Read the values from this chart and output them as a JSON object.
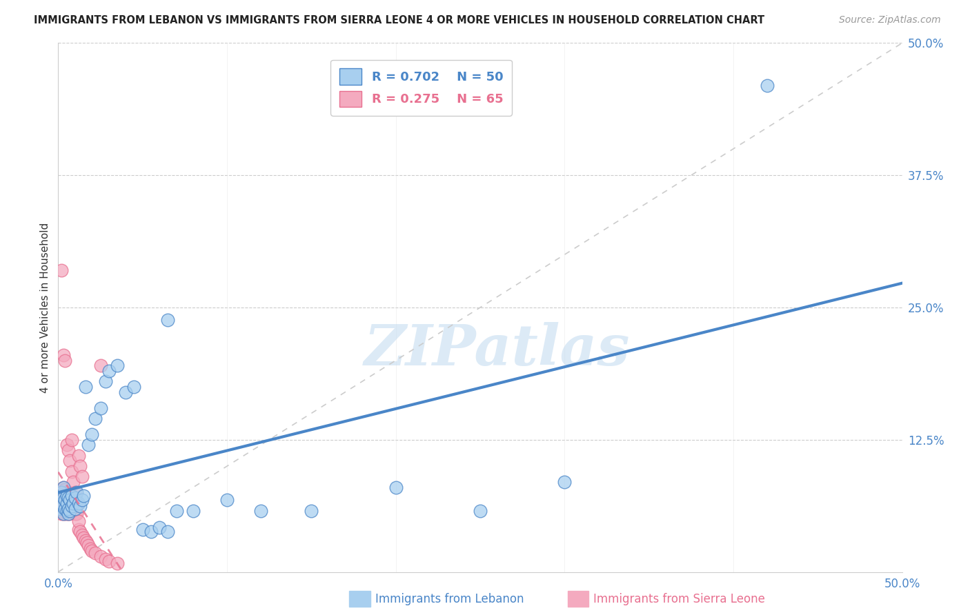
{
  "title": "IMMIGRANTS FROM LEBANON VS IMMIGRANTS FROM SIERRA LEONE 4 OR MORE VEHICLES IN HOUSEHOLD CORRELATION CHART",
  "source": "Source: ZipAtlas.com",
  "ylabel": "4 or more Vehicles in Household",
  "xlim": [
    0.0,
    0.5
  ],
  "ylim": [
    0.0,
    0.5
  ],
  "xtick_positions": [
    0.0,
    0.1,
    0.2,
    0.3,
    0.4,
    0.5
  ],
  "ytick_positions": [
    0.125,
    0.25,
    0.375,
    0.5
  ],
  "lebanon_R": 0.702,
  "lebanon_N": 50,
  "sierraleone_R": 0.275,
  "sierraleone_N": 65,
  "lebanon_color": "#A8CFEF",
  "sierraleone_color": "#F4AABF",
  "lebanon_line_color": "#4A86C8",
  "sierraleone_line_color": "#E87090",
  "diag_line_color": "#CCCCCC",
  "watermark_text": "ZIPatlas",
  "lebanon_x": [
    0.001,
    0.002,
    0.002,
    0.003,
    0.003,
    0.003,
    0.004,
    0.004,
    0.005,
    0.005,
    0.005,
    0.006,
    0.006,
    0.006,
    0.007,
    0.007,
    0.008,
    0.008,
    0.009,
    0.01,
    0.01,
    0.011,
    0.012,
    0.013,
    0.014,
    0.015,
    0.016,
    0.018,
    0.02,
    0.022,
    0.025,
    0.028,
    0.03,
    0.035,
    0.04,
    0.045,
    0.05,
    0.055,
    0.06,
    0.065,
    0.07,
    0.08,
    0.1,
    0.12,
    0.15,
    0.2,
    0.25,
    0.3,
    0.42,
    0.065
  ],
  "lebanon_y": [
    0.06,
    0.065,
    0.075,
    0.055,
    0.07,
    0.08,
    0.06,
    0.068,
    0.058,
    0.065,
    0.072,
    0.055,
    0.06,
    0.07,
    0.058,
    0.068,
    0.062,
    0.072,
    0.065,
    0.06,
    0.07,
    0.075,
    0.065,
    0.062,
    0.068,
    0.072,
    0.175,
    0.12,
    0.13,
    0.145,
    0.155,
    0.18,
    0.19,
    0.195,
    0.17,
    0.175,
    0.04,
    0.038,
    0.042,
    0.038,
    0.058,
    0.058,
    0.068,
    0.058,
    0.058,
    0.08,
    0.058,
    0.085,
    0.46,
    0.238
  ],
  "sierraleone_x": [
    0.001,
    0.001,
    0.001,
    0.002,
    0.002,
    0.002,
    0.002,
    0.003,
    0.003,
    0.003,
    0.003,
    0.004,
    0.004,
    0.004,
    0.004,
    0.005,
    0.005,
    0.005,
    0.005,
    0.006,
    0.006,
    0.006,
    0.006,
    0.007,
    0.007,
    0.007,
    0.008,
    0.008,
    0.008,
    0.009,
    0.009,
    0.01,
    0.01,
    0.011,
    0.011,
    0.012,
    0.012,
    0.013,
    0.014,
    0.015,
    0.016,
    0.017,
    0.018,
    0.019,
    0.02,
    0.022,
    0.025,
    0.028,
    0.03,
    0.035,
    0.002,
    0.003,
    0.004,
    0.005,
    0.006,
    0.007,
    0.008,
    0.009,
    0.01,
    0.011,
    0.008,
    0.025,
    0.012,
    0.013,
    0.014
  ],
  "sierraleone_y": [
    0.058,
    0.065,
    0.072,
    0.055,
    0.062,
    0.07,
    0.078,
    0.055,
    0.062,
    0.07,
    0.08,
    0.055,
    0.062,
    0.07,
    0.078,
    0.055,
    0.062,
    0.068,
    0.075,
    0.055,
    0.062,
    0.07,
    0.075,
    0.055,
    0.062,
    0.068,
    0.058,
    0.065,
    0.072,
    0.058,
    0.065,
    0.055,
    0.062,
    0.055,
    0.062,
    0.04,
    0.048,
    0.038,
    0.035,
    0.032,
    0.03,
    0.028,
    0.025,
    0.022,
    0.02,
    0.018,
    0.015,
    0.012,
    0.01,
    0.008,
    0.285,
    0.205,
    0.2,
    0.12,
    0.115,
    0.105,
    0.095,
    0.085,
    0.075,
    0.065,
    0.125,
    0.195,
    0.11,
    0.1,
    0.09
  ]
}
